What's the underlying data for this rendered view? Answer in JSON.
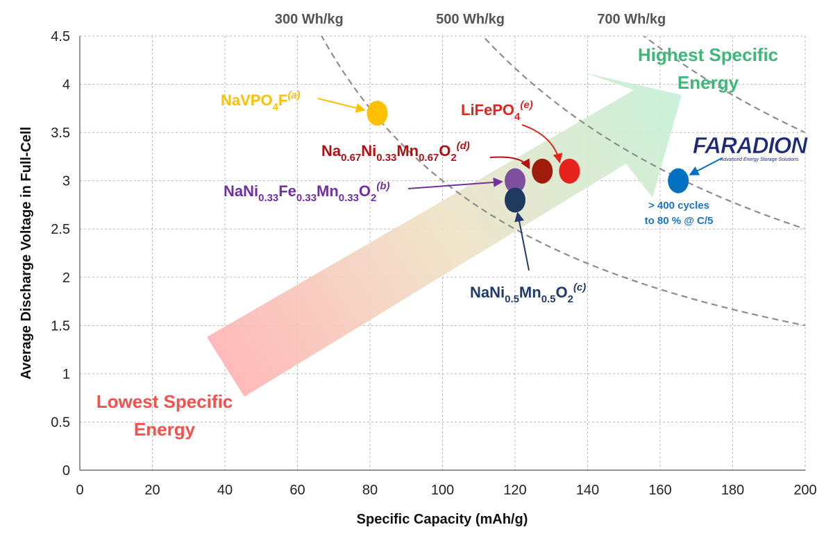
{
  "chart_data": {
    "type": "scatter",
    "title": "",
    "xlabel": "Specific Capacity (mAh/g)",
    "ylabel": "Average Discharge Voltage in Full-Cell",
    "xlim": [
      0,
      200
    ],
    "ylim": [
      0,
      4.5
    ],
    "x_ticks": [
      "0",
      "20",
      "40",
      "60",
      "80",
      "100",
      "120",
      "140",
      "160",
      "180",
      "200"
    ],
    "y_ticks": [
      "0",
      "0.5",
      "1",
      "1.5",
      "2",
      "2.5",
      "3",
      "3.5",
      "4",
      "4.5"
    ],
    "grid": true,
    "energy_curves": [
      {
        "label": "300 Wh/kg",
        "energy": 300
      },
      {
        "label": "500 Wh/kg",
        "energy": 500
      },
      {
        "label": "700 Wh/kg",
        "energy": 700
      }
    ],
    "points": [
      {
        "x": 82,
        "y": 3.7,
        "color": "#FFC000",
        "label": {
          "base": "NaVPO",
          "parts": [
            [
              "sub",
              "4"
            ],
            [
              "n",
              "F"
            ],
            [
              "sup",
              "(a)"
            ]
          ]
        },
        "label_color": "#FFC000"
      },
      {
        "x": 120,
        "y": 3.0,
        "color": "#7F4F9F",
        "label": {
          "base": "NaNi",
          "parts": [
            [
              "sub",
              "0.33"
            ],
            [
              "n",
              "Fe"
            ],
            [
              "sub",
              "0.33"
            ],
            [
              "n",
              "Mn"
            ],
            [
              "sub",
              "0.33"
            ],
            [
              "n",
              "O"
            ],
            [
              "sub",
              "2"
            ],
            [
              "sup",
              "(b)"
            ]
          ]
        },
        "label_color": "#7030A0"
      },
      {
        "x": 120,
        "y": 2.8,
        "color": "#1F3A5F",
        "label": {
          "base": "NaNi",
          "parts": [
            [
              "sub",
              "0.5"
            ],
            [
              "n",
              "Mn"
            ],
            [
              "sub",
              "0.5"
            ],
            [
              "n",
              "O"
            ],
            [
              "sub",
              "2"
            ],
            [
              "sup",
              "(c)"
            ]
          ]
        },
        "label_color": "#1F3A6B"
      },
      {
        "x": 127.5,
        "y": 3.1,
        "color": "#A01C0C",
        "label": {
          "base": "Na",
          "parts": [
            [
              "sub",
              "0.67"
            ],
            [
              "n",
              "Ni"
            ],
            [
              "sub",
              "0.33"
            ],
            [
              "n",
              "Mn"
            ],
            [
              "sub",
              "0.67"
            ],
            [
              "n",
              "O"
            ],
            [
              "sub",
              "2"
            ],
            [
              "sup",
              "(d)"
            ]
          ]
        },
        "label_color": "#B01010"
      },
      {
        "x": 135,
        "y": 3.1,
        "color": "#E5231B",
        "label": {
          "base": "LiFePO",
          "parts": [
            [
              "sub",
              "4"
            ],
            [
              "sup",
              "(e)"
            ]
          ]
        },
        "label_color": "#E5231B"
      },
      {
        "x": 165,
        "y": 3.0,
        "color": "#0070C0",
        "label": null,
        "label_color": "#0070C0"
      }
    ],
    "annotations": {
      "lowest": [
        "Lowest Specific",
        "Energy"
      ],
      "highest": [
        "Highest Specific",
        "Energy"
      ],
      "faradion_note": [
        "> 400 cycles",
        "to 80 % @ C/5"
      ],
      "logo": "FARADION",
      "logo_tagline": "Advanced Energy Storage Solutions"
    },
    "colors": {
      "lowest": "#F4504C",
      "highest": "#3CB878",
      "grid": "#b8b8b8",
      "curve": "#8c8c8c"
    }
  }
}
